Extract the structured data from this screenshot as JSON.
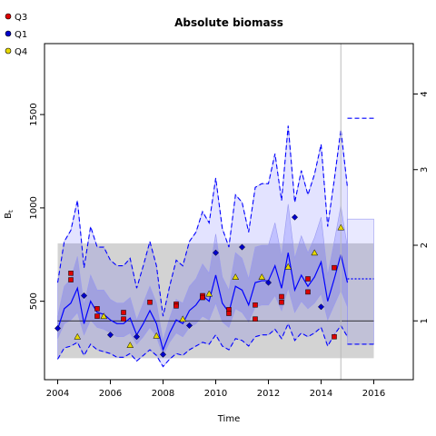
{
  "chart_data": {
    "type": "line",
    "title": "Absolute biomass",
    "xlabel": "Time",
    "ylabel": "B",
    "ylabel_sub": "t",
    "xlim": [
      2003.5,
      2017.5
    ],
    "ylim": [
      80,
      1880
    ],
    "x_ticks": [
      2004,
      2006,
      2008,
      2010,
      2012,
      2014,
      2016
    ],
    "y_ticks": [
      500,
      1000,
      1500
    ],
    "right_axis_ticks": [
      {
        "label": "1",
        "y": 395
      },
      {
        "label": "2",
        "y": 800
      },
      {
        "label": "3",
        "y": 1205
      },
      {
        "label": "4",
        "y": 1610
      }
    ],
    "grey_band": {
      "x": [
        2004,
        2016
      ],
      "y": [
        195,
        810
      ]
    },
    "reference_line": {
      "y": 395,
      "x": [
        2004,
        2016
      ]
    },
    "current_time_line": {
      "x": 2014.75
    },
    "legend": [
      {
        "label": "Q3",
        "color": "#dd0000",
        "shape": "circle"
      },
      {
        "label": "Q1",
        "color": "#0000cc",
        "shape": "circle"
      },
      {
        "label": "Q4",
        "color": "#e6d800",
        "shape": "circle"
      }
    ],
    "estimate": {
      "color": "#0000ff",
      "x": [
        2004.0,
        2004.25,
        2004.5,
        2004.75,
        2005.0,
        2005.25,
        2005.5,
        2005.75,
        2006.0,
        2006.25,
        2006.5,
        2006.75,
        2007.0,
        2007.25,
        2007.5,
        2007.75,
        2008.0,
        2008.25,
        2008.5,
        2008.75,
        2009.0,
        2009.25,
        2009.5,
        2009.75,
        2010.0,
        2010.25,
        2010.5,
        2010.75,
        2011.0,
        2011.25,
        2011.5,
        2011.75,
        2012.0,
        2012.25,
        2012.5,
        2012.75,
        2013.0,
        2013.25,
        2013.5,
        2013.75,
        2014.0,
        2014.25,
        2014.5,
        2014.75,
        2015.0
      ],
      "y": [
        350,
        460,
        490,
        570,
        380,
        500,
        440,
        430,
        400,
        380,
        380,
        410,
        320,
        380,
        450,
        380,
        240,
        330,
        400,
        380,
        450,
        480,
        530,
        500,
        640,
        490,
        440,
        580,
        560,
        480,
        600,
        610,
        610,
        690,
        570,
        760,
        560,
        640,
        580,
        630,
        710,
        500,
        620,
        750,
        600
      ]
    },
    "ci_inner": {
      "x": [
        2004.0,
        2004.25,
        2004.5,
        2004.75,
        2005.0,
        2005.25,
        2005.5,
        2005.75,
        2006.0,
        2006.25,
        2006.5,
        2006.75,
        2007.0,
        2007.25,
        2007.5,
        2007.75,
        2008.0,
        2008.25,
        2008.5,
        2008.75,
        2009.0,
        2009.25,
        2009.5,
        2009.75,
        2010.0,
        2010.25,
        2010.5,
        2010.75,
        2011.0,
        2011.25,
        2011.5,
        2011.75,
        2012.0,
        2012.25,
        2012.5,
        2012.75,
        2013.0,
        2013.25,
        2013.5,
        2013.75,
        2014.0,
        2014.25,
        2014.5,
        2014.75,
        2015.0
      ],
      "lower": [
        300,
        380,
        400,
        440,
        320,
        400,
        360,
        350,
        330,
        310,
        310,
        330,
        270,
        310,
        360,
        310,
        210,
        280,
        330,
        310,
        360,
        380,
        420,
        400,
        490,
        390,
        360,
        460,
        440,
        390,
        470,
        480,
        480,
        530,
        450,
        570,
        440,
        500,
        460,
        490,
        540,
        400,
        480,
        560,
        470
      ],
      "upper": [
        420,
        580,
        620,
        740,
        480,
        640,
        560,
        560,
        510,
        490,
        490,
        520,
        400,
        490,
        580,
        490,
        290,
        410,
        510,
        490,
        580,
        620,
        700,
        650,
        860,
        630,
        560,
        760,
        730,
        620,
        790,
        800,
        800,
        920,
        740,
        1020,
        730,
        850,
        760,
        840,
        950,
        640,
        820,
        1010,
        790
      ]
    },
    "ci_outer": {
      "x": [
        2004.0,
        2004.25,
        2004.5,
        2004.75,
        2005.0,
        2005.25,
        2005.5,
        2005.75,
        2006.0,
        2006.25,
        2006.5,
        2006.75,
        2007.0,
        2007.25,
        2007.5,
        2007.75,
        2008.0,
        2008.25,
        2008.5,
        2008.75,
        2009.0,
        2009.25,
        2009.5,
        2009.75,
        2010.0,
        2010.25,
        2010.5,
        2010.75,
        2011.0,
        2011.25,
        2011.5,
        2011.75,
        2012.0,
        2012.25,
        2012.5,
        2012.75,
        2013.0,
        2013.25,
        2013.5,
        2013.75,
        2014.0,
        2014.25,
        2014.5,
        2014.75,
        2015.0
      ],
      "lower": [
        190,
        250,
        260,
        280,
        210,
        270,
        240,
        230,
        220,
        200,
        200,
        220,
        180,
        210,
        240,
        210,
        150,
        190,
        220,
        210,
        240,
        260,
        280,
        270,
        320,
        260,
        240,
        300,
        290,
        260,
        310,
        320,
        320,
        350,
        300,
        380,
        290,
        330,
        310,
        330,
        360,
        260,
        320,
        370,
        310
      ],
      "upper": [
        600,
        820,
        880,
        1040,
        680,
        900,
        790,
        790,
        720,
        690,
        690,
        730,
        570,
        690,
        820,
        690,
        420,
        580,
        720,
        690,
        820,
        870,
        980,
        920,
        1160,
        890,
        790,
        1070,
        1030,
        870,
        1110,
        1130,
        1130,
        1290,
        1040,
        1440,
        1030,
        1200,
        1070,
        1180,
        1340,
        900,
        1150,
        1420,
        1110
      ]
    },
    "projection": {
      "x": [
        2015.0,
        2016.0
      ],
      "estimate": [
        620,
        620
      ],
      "lower": [
        270,
        270
      ],
      "upper": [
        940,
        940
      ],
      "outer_upper": [
        1480,
        1480
      ]
    },
    "observations": {
      "Q3": {
        "x": [
          2004.5,
          2004.5,
          2005.5,
          2005.5,
          2006.5,
          2006.5,
          2007.5,
          2008.5,
          2008.5,
          2009.5,
          2009.5,
          2010.5,
          2010.5,
          2011.5,
          2011.5,
          2012.5,
          2012.5,
          2013.5,
          2013.5,
          2014.5,
          2014.5
        ],
        "y": [
          650,
          615,
          460,
          420,
          440,
          405,
          495,
          485,
          475,
          530,
          520,
          455,
          435,
          480,
          405,
          525,
          495,
          620,
          550,
          680,
          310
        ]
      },
      "Q1": {
        "x": [
          2004.0,
          2005.0,
          2006.0,
          2007.0,
          2008.0,
          2009.0,
          2010.0,
          2011.0,
          2012.0,
          2013.0,
          2014.0
        ],
        "y": [
          355,
          530,
          320,
          310,
          215,
          370,
          760,
          790,
          600,
          950,
          470
        ]
      },
      "Q4": {
        "x": [
          2004.75,
          2005.75,
          2006.75,
          2007.75,
          2008.75,
          2009.75,
          2010.75,
          2011.75,
          2012.75,
          2013.75,
          2014.75
        ],
        "y": [
          310,
          420,
          265,
          315,
          405,
          540,
          630,
          630,
          685,
          760,
          895
        ]
      }
    },
    "grid": false
  }
}
